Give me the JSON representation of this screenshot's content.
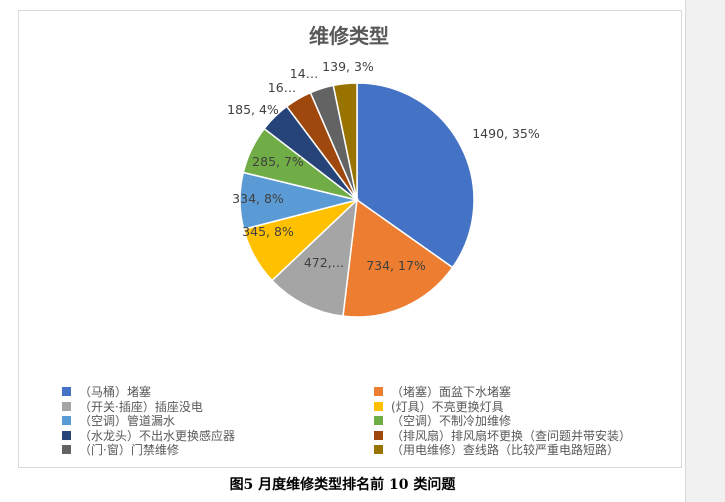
{
  "chart_data": {
    "type": "pie",
    "title": "维修类型",
    "legend_position": "bottom",
    "slices": [
      {
        "name": "（马桶）堵塞",
        "value": 1490,
        "percent": "35%",
        "label": "1490, 35%",
        "color": "#4472c4"
      },
      {
        "name": "（堵塞）面盆下水堵塞",
        "value": 734,
        "percent": "17%",
        "label": "734, 17%",
        "color": "#ed7d31"
      },
      {
        "name": "（开关·插座）插座没电",
        "value": 472,
        "percent": "11%",
        "label": "472,…",
        "color": "#a5a5a5"
      },
      {
        "name": "(灯具）不亮更换灯具",
        "value": 345,
        "percent": "8%",
        "label": "345, 8%",
        "color": "#ffc000"
      },
      {
        "name": "（空调）管道漏水",
        "value": 334,
        "percent": "8%",
        "label": "334, 8%",
        "color": "#5b9bd5"
      },
      {
        "name": "（空调）不制冷加维修",
        "value": 285,
        "percent": "7%",
        "label": "285, 7%",
        "color": "#70ad47"
      },
      {
        "name": "（水龙头）不出水更换感应器",
        "value": 185,
        "percent": "4%",
        "label": "185, 4%",
        "color": "#264478"
      },
      {
        "name": "（排风扇）排风扇坏更换（查问题并带安装）",
        "value": 160,
        "percent": "4%",
        "label": "16…",
        "color": "#9e480e"
      },
      {
        "name": "（门·窗）门禁维修",
        "value": 140,
        "percent": "3%",
        "label": "14…",
        "color": "#636363"
      },
      {
        "name": "（用电维修）查线路（比较严重电路短路）",
        "value": 139,
        "percent": "3%",
        "label": "139, 3%",
        "color": "#997300"
      }
    ]
  },
  "caption": "图5  月度维修类型排名前 10 类问题"
}
